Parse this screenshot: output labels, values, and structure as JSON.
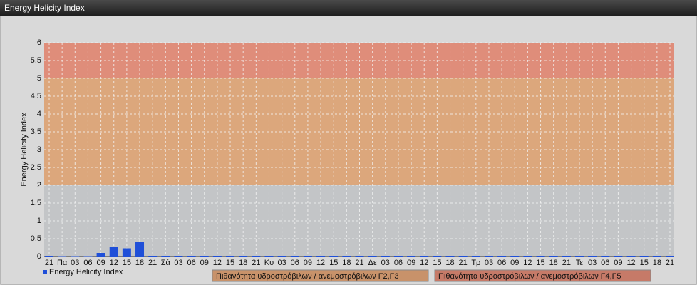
{
  "window_title": "Energy Helicity Index",
  "chart_data": {
    "type": "bar",
    "y_axis_label": "Energy Helicity Index",
    "categories": [
      "21",
      "Πα",
      "03",
      "06",
      "09",
      "12",
      "15",
      "18",
      "21",
      "Σά",
      "03",
      "06",
      "09",
      "12",
      "15",
      "18",
      "21",
      "Κυ",
      "03",
      "06",
      "09",
      "12",
      "15",
      "18",
      "21",
      "Δε",
      "03",
      "06",
      "09",
      "12",
      "15",
      "18",
      "21",
      "Τρ",
      "03",
      "06",
      "09",
      "12",
      "15",
      "18",
      "21",
      "Τε",
      "03",
      "06",
      "09",
      "12",
      "15",
      "18",
      "21"
    ],
    "series": [
      {
        "name": "Energy Helicity Index",
        "color": "#1f4fd8",
        "values": [
          0.02,
          0.01,
          0.01,
          0.01,
          0.1,
          0.27,
          0.23,
          0.42,
          0.02,
          0.02,
          0.02,
          0.02,
          0.02,
          0.02,
          0.02,
          0.02,
          0.02,
          0.02,
          0.02,
          0.02,
          0.02,
          0.02,
          0.02,
          0.02,
          0.02,
          0.02,
          0.02,
          0.02,
          0.02,
          0.02,
          0.02,
          0.02,
          0.02,
          0.02,
          0.02,
          0.02,
          0.02,
          0.02,
          0.02,
          0.02,
          0.02,
          0.02,
          0.02,
          0.02,
          0.02,
          0.02,
          0.02,
          0.02,
          0.02
        ]
      }
    ],
    "bands": [
      {
        "from": 0,
        "to": 2,
        "color": "#c3c5c7"
      },
      {
        "from": 2,
        "to": 5,
        "color": "#dca77c",
        "name": "Πιθανότητα υδροστρόβιλων / ανεμοστρόβιλων F2,F3",
        "legend_color": "#c8926a"
      },
      {
        "from": 5,
        "to": 6,
        "color": "#df8d7a",
        "name": "Πιθανότητα υδροστρόβιλων / ανεμοστρόβιλων F4,F5",
        "legend_color": "#c67a68"
      }
    ],
    "ylim": [
      0,
      6
    ],
    "yticks": [
      0,
      0.5,
      1,
      1.5,
      2,
      2.5,
      3,
      3.5,
      4,
      4.5,
      5,
      5.5,
      6
    ],
    "grid": true
  }
}
